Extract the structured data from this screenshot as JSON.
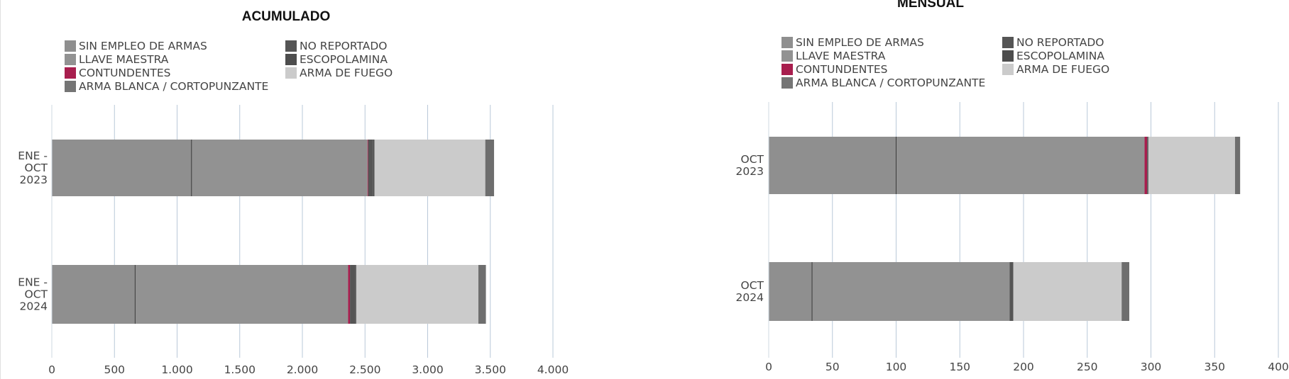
{
  "chart_data": [
    {
      "type": "bar",
      "orientation": "horizontal",
      "stacked": true,
      "title": "ACUMULADO",
      "categories": [
        "ENE -\nOCT\n2023",
        "ENE -\nOCT\n2024"
      ],
      "xticks": [
        "0",
        "500",
        "1.000",
        "1.500",
        "2.000",
        "2.500",
        "3.000",
        "3.500",
        "4.000"
      ],
      "xlim": [
        0,
        4000
      ],
      "grid": true,
      "legend_position": "top",
      "series": [
        {
          "name": "SIN EMPLEO DE ARMAS",
          "values": [
            1115,
            665
          ],
          "color": "#8f8f8f"
        },
        {
          "name": "LLAVE MAESTRA",
          "values": [
            1405,
            1700
          ],
          "color": "#929292"
        },
        {
          "name": "CONTUNDENTES",
          "values": [
            5,
            15
          ],
          "color": "#a81e4e"
        },
        {
          "name": "ARMA BLANCA / CORTOPUNZANTE",
          "values": [
            0,
            0
          ],
          "color": "#757575"
        },
        {
          "name": "NO REPORTADO",
          "values": [
            40,
            40
          ],
          "color": "#555555"
        },
        {
          "name": "ESCOPOLAMINA",
          "values": [
            10,
            10
          ],
          "color": "#4d4d4d"
        },
        {
          "name": "ARMA DE FUEGO",
          "values": [
            885,
            975
          ],
          "color": "#cbcbcb"
        },
        {
          "name": "ARMA BLANCA / CORTOPUNZANTE",
          "values": [
            70,
            60
          ],
          "color": "#6e6e6e"
        }
      ]
    },
    {
      "type": "bar",
      "orientation": "horizontal",
      "stacked": true,
      "title": "MENSUAL",
      "categories": [
        "OCT\n2023",
        "OCT\n2024"
      ],
      "xticks": [
        "0",
        "50",
        "100",
        "150",
        "200",
        "250",
        "300",
        "350",
        "400"
      ],
      "xlim": [
        0,
        400
      ],
      "grid": true,
      "legend_position": "top",
      "series": [
        {
          "name": "SIN EMPLEO DE ARMAS",
          "values": [
            100,
            34
          ],
          "color": "#8f8f8f"
        },
        {
          "name": "LLAVE MAESTRA",
          "values": [
            195,
            155
          ],
          "color": "#929292"
        },
        {
          "name": "CONTUNDENTES",
          "values": [
            2,
            0
          ],
          "color": "#a81e4e"
        },
        {
          "name": "NO REPORTADO",
          "values": [
            1,
            3
          ],
          "color": "#555555"
        },
        {
          "name": "ARMA DE FUEGO",
          "values": [
            68,
            85
          ],
          "color": "#cbcbcb"
        },
        {
          "name": "ARMA BLANCA / CORTOPUNZANTE",
          "values": [
            4,
            6
          ],
          "color": "#6e6e6e"
        }
      ]
    }
  ],
  "legends": [
    {
      "items": [
        {
          "label": "SIN EMPLEO DE ARMAS",
          "color": "#8f8f8f"
        },
        {
          "label": "LLAVE MAESTRA",
          "color": "#929292"
        },
        {
          "label": "CONTUNDENTES",
          "color": "#a81e4e"
        },
        {
          "label": "ARMA BLANCA / CORTOPUNZANTE",
          "color": "#757575"
        },
        {
          "label": "NO REPORTADO",
          "color": "#555555"
        },
        {
          "label": "ESCOPOLAMINA",
          "color": "#4d4d4d"
        },
        {
          "label": "ARMA DE FUEGO",
          "color": "#cbcbcb"
        }
      ]
    },
    {
      "items": [
        {
          "label": "SIN EMPLEO DE ARMAS",
          "color": "#8f8f8f"
        },
        {
          "label": "LLAVE MAESTRA",
          "color": "#929292"
        },
        {
          "label": "CONTUNDENTES",
          "color": "#a81e4e"
        },
        {
          "label": "ARMA BLANCA / CORTOPUNZANTE",
          "color": "#757575"
        },
        {
          "label": "NO REPORTADO",
          "color": "#555555"
        },
        {
          "label": "ESCOPOLAMINA",
          "color": "#4d4d4d"
        },
        {
          "label": "ARMA DE FUEGO",
          "color": "#cbcbcb"
        }
      ]
    }
  ],
  "colors": {
    "gridline": "#b9c8d8",
    "segment_divider": "#3a3a3a"
  }
}
